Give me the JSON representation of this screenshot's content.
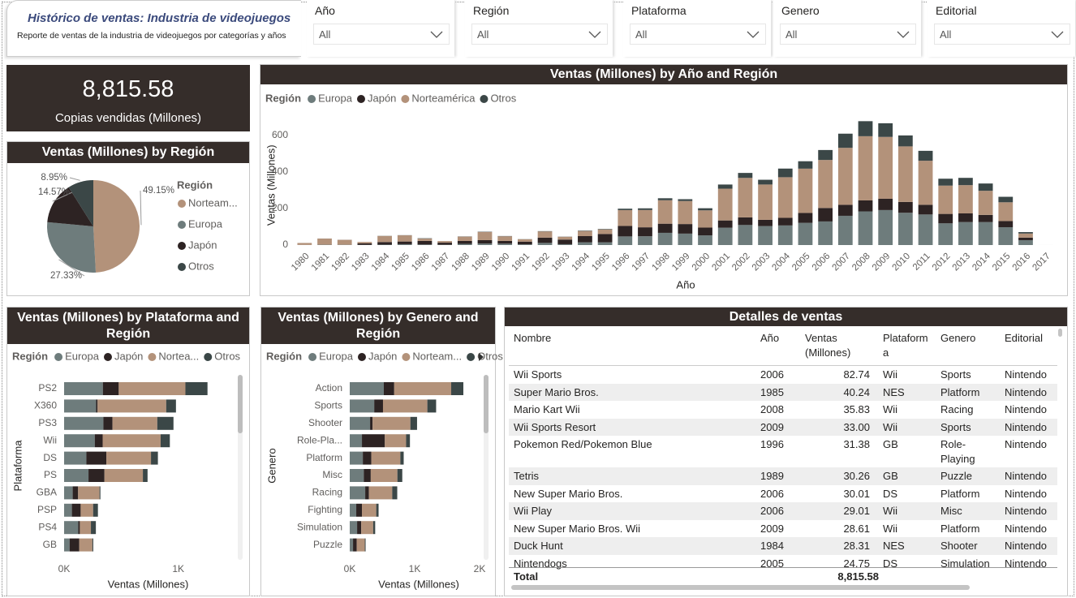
{
  "header": {
    "title": "Histórico de ventas: Industria de videojuegos",
    "subtitle": "Reporte de ventas de la industria de videojuegos por categorías y años"
  },
  "filters": [
    {
      "label": "Año",
      "value": "All"
    },
    {
      "label": "Región",
      "value": "All"
    },
    {
      "label": "Plataforma",
      "value": "All"
    },
    {
      "label": "Genero",
      "value": "All"
    },
    {
      "label": "Editorial",
      "value": "All"
    }
  ],
  "kpi": {
    "value": "8,815.58",
    "label": "Copias vendidas (Millones)"
  },
  "chart_data": [
    {
      "type": "pie",
      "title": "Ventas (Millones) by Región",
      "legend_title": "Región",
      "legend": "right",
      "categories": [
        "Norteam...",
        "Europa",
        "Japón",
        "Otros"
      ],
      "values": [
        49.15,
        27.33,
        14.57,
        8.95
      ],
      "value_labels": [
        "49.15%",
        "27.33%",
        "14.57%",
        "8.95%"
      ],
      "colors": [
        "#b3927a",
        "#6e7c7c",
        "#2d2323",
        "#3b4747"
      ]
    },
    {
      "type": "bar",
      "stacked": true,
      "orientation": "vertical",
      "title": "Ventas (Millones) by Año and Región",
      "legend_title": "Región",
      "legend": "top-left",
      "x_label": "Año",
      "y_label": "Ventas (Millones)",
      "ylim": [
        0,
        700
      ],
      "yticks": [
        0,
        200,
        400,
        600
      ],
      "grid": false,
      "categories": [
        "1980",
        "1981",
        "1982",
        "1983",
        "1984",
        "1985",
        "1986",
        "1987",
        "1988",
        "1989",
        "1990",
        "1991",
        "1992",
        "1993",
        "1994",
        "1995",
        "1996",
        "1997",
        "1998",
        "1999",
        "2000",
        "2001",
        "2002",
        "2003",
        "2004",
        "2005",
        "2006",
        "2007",
        "2008",
        "2009",
        "2010",
        "2011",
        "2012",
        "2013",
        "2014",
        "2015",
        "2016",
        "2017"
      ],
      "series": [
        {
          "name": "Europa",
          "color": "#6e7c7c",
          "values": [
            0.67,
            1.96,
            1.65,
            0.8,
            2.1,
            4.74,
            2.84,
            1.41,
            6.59,
            8.44,
            7.63,
            3.95,
            11.71,
            4.65,
            14.88,
            14.9,
            47.26,
            48.32,
            66.9,
            62.67,
            52.75,
            94.89,
            109.74,
            103.81,
            107.32,
            121.55,
            129.24,
            160.18,
            184.4,
            191.59,
            176.73,
            167.44,
            118.78,
            125.8,
            125.65,
            97.71,
            26.76,
            0
          ]
        },
        {
          "name": "Japón",
          "color": "#2d2323",
          "values": [
            0,
            0,
            0,
            8.1,
            14.27,
            14.56,
            19.81,
            11.63,
            15.76,
            18.36,
            14.88,
            14.78,
            28.91,
            25.33,
            33.99,
            45.75,
            57.44,
            48.87,
            50.04,
            52.34,
            42.77,
            39.86,
            41.76,
            34.2,
            41.65,
            54.28,
            73.73,
            60.29,
            60.26,
            61.89,
            59.49,
            53.04,
            51.8,
            47.59,
            39.46,
            33.72,
            13.7,
            0.05
          ]
        },
        {
          "name": "Norteamérica",
          "color": "#b3927a",
          "values": [
            10.59,
            33.4,
            26.92,
            7.76,
            33.28,
            33.73,
            12.5,
            8.46,
            23.87,
            45.15,
            25.46,
            12.76,
            33.87,
            15.12,
            28.15,
            24.82,
            86.76,
            94.75,
            128.36,
            126.06,
            94.49,
            173.98,
            216.19,
            193.59,
            222.59,
            242.61,
            263.12,
            311.98,
            351.44,
            338.85,
            304.24,
            241.21,
            154.96,
            154.77,
            131.97,
            102.82,
            22.66,
            0
          ]
        },
        {
          "name": "Otros",
          "color": "#3b4747",
          "values": [
            0.12,
            0.32,
            0.31,
            0.14,
            0.7,
            0.92,
            1.93,
            0.2,
            0.99,
            1.5,
            1.4,
            0.74,
            1.65,
            0.89,
            2.2,
            2.64,
            7.69,
            9.13,
            11.03,
            10.05,
            11.62,
            22.76,
            27.28,
            26.01,
            47.27,
            40.58,
            54.43,
            77.58,
            82.39,
            74.77,
            59.9,
            54.39,
            37.82,
            39.82,
            40.02,
            30.01,
            7.8,
            0
          ]
        }
      ]
    },
    {
      "type": "bar",
      "stacked": true,
      "orientation": "horizontal",
      "title": "Ventas (Millones) by Plataforma and Región",
      "legend_title": "Región",
      "legend": "top-left",
      "x_label": "Ventas (Millones)",
      "y_label": "Plataforma",
      "xlim": [
        0,
        1400
      ],
      "xticks": [
        {
          "value": 0,
          "label": "0K"
        },
        {
          "value": 1000,
          "label": "1K"
        }
      ],
      "grid": false,
      "categories": [
        "PS2",
        "X360",
        "PS3",
        "Wii",
        "DS",
        "PS",
        "GBA",
        "PSP",
        "PS4",
        "GB"
      ],
      "series": [
        {
          "name": "Europa",
          "color": "#6e7c7c",
          "values": [
            339.29,
            280.58,
            343.71,
            268.38,
            194.65,
            213.6,
            75.25,
            68.25,
            123.7,
            47.82
          ]
        },
        {
          "name": "Japón",
          "color": "#2d2323",
          "values": [
            139.2,
            12.43,
            79.99,
            69.35,
            175.57,
            139.82,
            47.33,
            76.79,
            14.3,
            85.12
          ]
        },
        {
          "name": "Nortea...",
          "color": "#b3927a",
          "values": [
            583.84,
            601.05,
            392.26,
            507.71,
            390.71,
            336.51,
            187.54,
            108.99,
            96.8,
            114.32
          ]
        },
        {
          "name": "Otros",
          "color": "#3b4747",
          "values": [
            193.44,
            85.54,
            141.93,
            80.61,
            60.53,
            40.91,
            7.73,
            42.19,
            43.36,
            8.2
          ]
        }
      ]
    },
    {
      "type": "bar",
      "stacked": true,
      "orientation": "horizontal",
      "title": "Ventas (Millones) by Genero and Región",
      "legend_title": "Región",
      "legend": "top-left",
      "x_label": "Ventas (Millones)",
      "y_label": "Genero",
      "xlim": [
        0,
        2000
      ],
      "xticks": [
        {
          "value": 0,
          "label": "0K"
        },
        {
          "value": 1000,
          "label": "1K"
        },
        {
          "value": 2000,
          "label": "2K"
        }
      ],
      "grid": false,
      "categories": [
        "Action",
        "Sports",
        "Shooter",
        "Role-Pla...",
        "Platform",
        "Misc",
        "Racing",
        "Fighting",
        "Simulation",
        "Puzzle"
      ],
      "series": [
        {
          "name": "Europa",
          "color": "#6e7c7c",
          "values": [
            525,
            376.85,
            313.27,
            188.06,
            201.63,
            215.98,
            238.39,
            100.33,
            113.38,
            50.78
          ]
        },
        {
          "name": "Japón",
          "color": "#2d2323",
          "values": [
            159.95,
            135.37,
            38.28,
            352.31,
            130.77,
            107.76,
            56.69,
            87.35,
            63.7,
            57.31
          ]
        },
        {
          "name": "Norteam...",
          "color": "#b3927a",
          "values": [
            877.83,
            683.35,
            582.6,
            327.28,
            447.05,
            410.24,
            359.42,
            220.35,
            183.31,
            123.78
          ]
        },
        {
          "name": "Otros",
          "color": "#3b4747",
          "values": [
            187.38,
            134.97,
            102.69,
            59.61,
            51.59,
            75.32,
            77.27,
            36.22,
            31.52,
            12.55
          ]
        }
      ]
    }
  ],
  "table": {
    "title": "Detalles de ventas",
    "columns": [
      "Nombre",
      "Año",
      "Ventas (Millones)",
      "Plataforma",
      "Genero",
      "Editorial"
    ],
    "rows": [
      [
        "Wii Sports",
        "2006",
        "82.74",
        "Wii",
        "Sports",
        "Nintendo"
      ],
      [
        "Super Mario Bros.",
        "1985",
        "40.24",
        "NES",
        "Platform",
        "Nintendo"
      ],
      [
        "Mario Kart Wii",
        "2008",
        "35.83",
        "Wii",
        "Racing",
        "Nintendo"
      ],
      [
        "Wii Sports Resort",
        "2009",
        "33.00",
        "Wii",
        "Sports",
        "Nintendo"
      ],
      [
        "Pokemon Red/Pokemon Blue",
        "1996",
        "31.38",
        "GB",
        "Role-Playing",
        "Nintendo"
      ],
      [
        "Tetris",
        "1989",
        "30.26",
        "GB",
        "Puzzle",
        "Nintendo"
      ],
      [
        "New Super Mario Bros.",
        "2006",
        "30.01",
        "DS",
        "Platform",
        "Nintendo"
      ],
      [
        "Wii Play",
        "2006",
        "29.01",
        "Wii",
        "Misc",
        "Nintendo"
      ],
      [
        "New Super Mario Bros. Wii",
        "2009",
        "28.61",
        "Wii",
        "Platform",
        "Nintendo"
      ],
      [
        "Duck Hunt",
        "1984",
        "28.31",
        "NES",
        "Shooter",
        "Nintendo"
      ],
      [
        "Nintendogs",
        "2005",
        "24.75",
        "DS",
        "Simulation",
        "Nintendo"
      ]
    ],
    "total": [
      "Total",
      "8,815.58"
    ]
  }
}
